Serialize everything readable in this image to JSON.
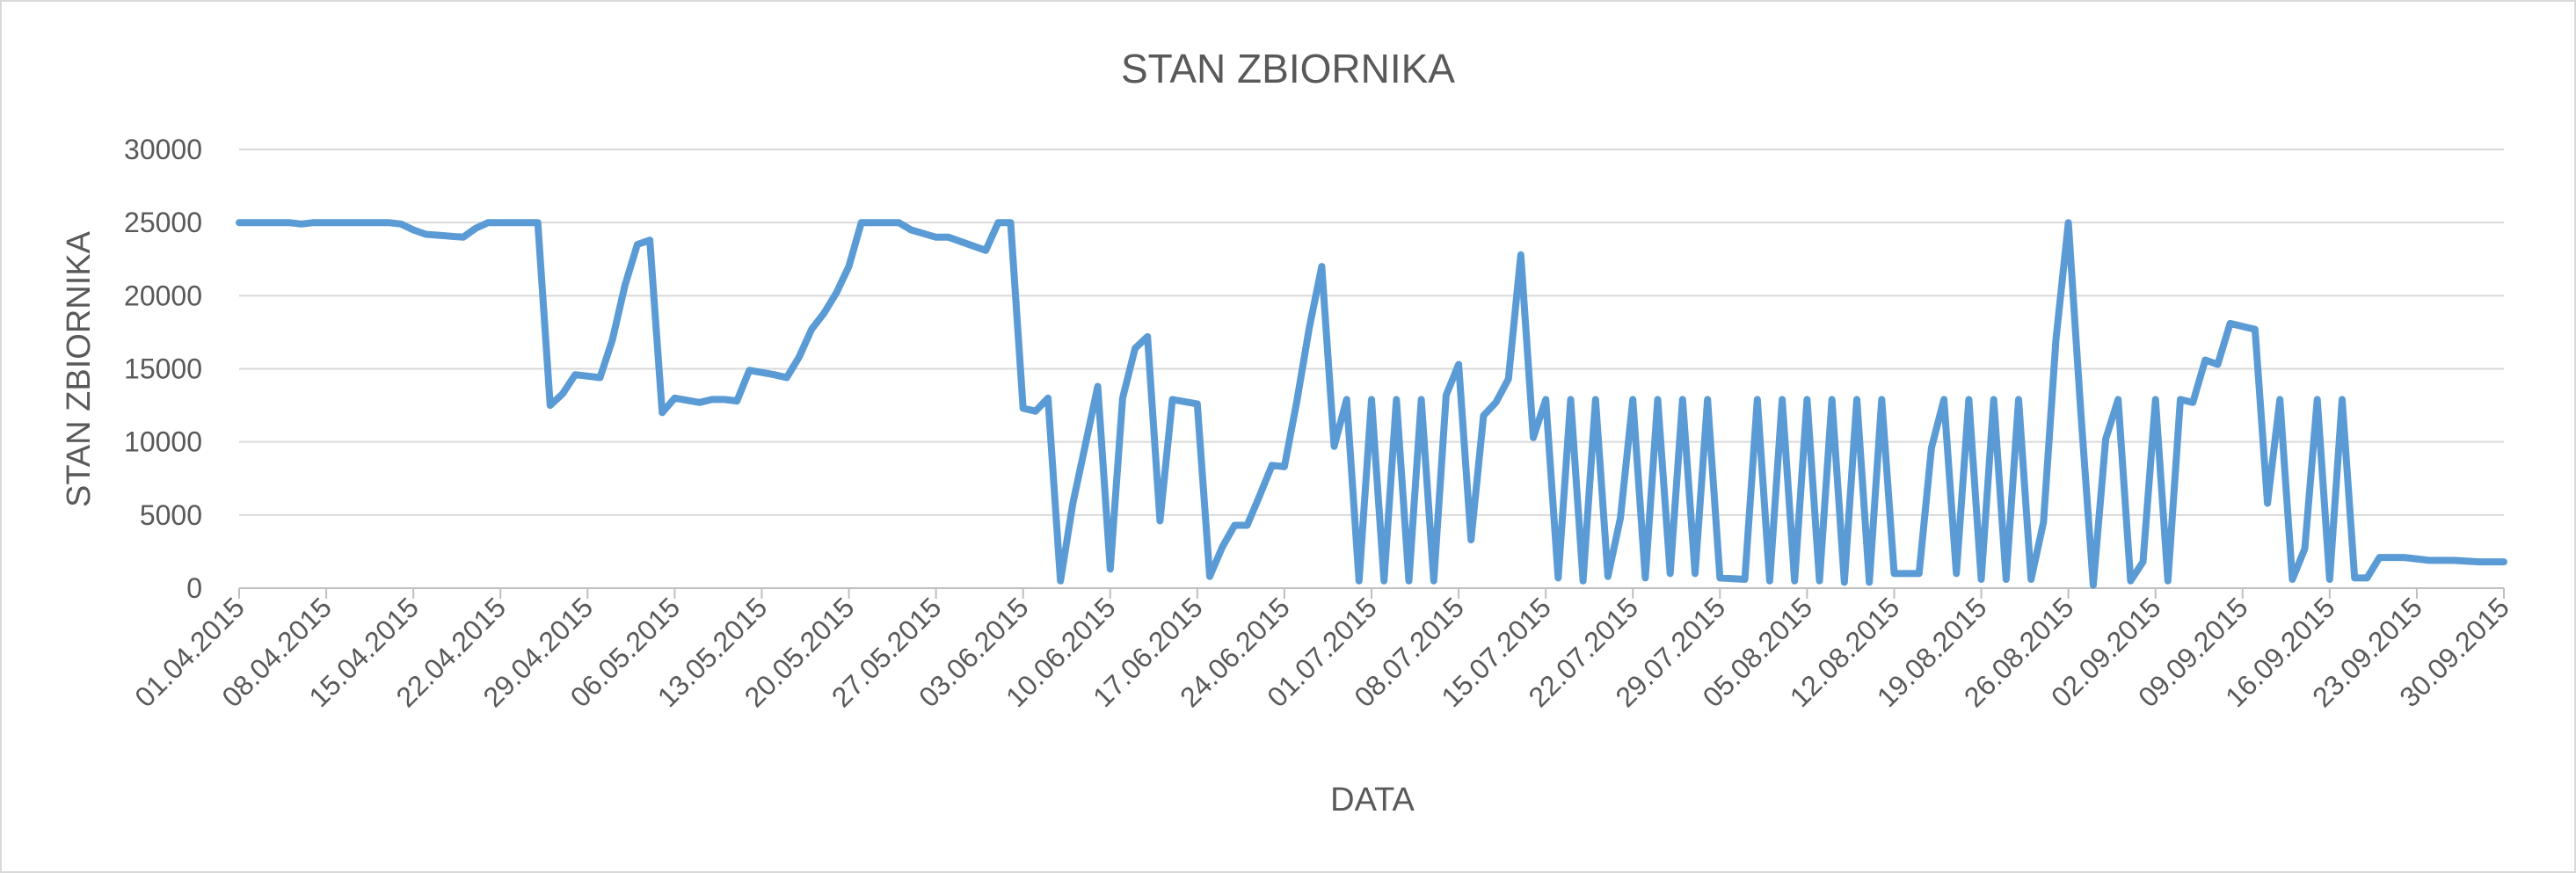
{
  "chart_data": {
    "type": "line",
    "title": "STAN ZBIORNIKA",
    "xlabel": "DATA",
    "ylabel": "STAN ZBIORNIKA",
    "ylim": [
      0,
      30000
    ],
    "yticks": [
      0,
      5000,
      10000,
      15000,
      20000,
      25000,
      30000
    ],
    "grid": true,
    "x_tick_labels": [
      "01.04.2015",
      "08.04.2015",
      "15.04.2015",
      "22.04.2015",
      "29.04.2015",
      "06.05.2015",
      "13.05.2015",
      "20.05.2015",
      "27.05.2015",
      "03.06.2015",
      "10.06.2015",
      "17.06.2015",
      "24.06.2015",
      "01.07.2015",
      "08.07.2015",
      "15.07.2015",
      "22.07.2015",
      "29.07.2015",
      "05.08.2015",
      "12.08.2015",
      "19.08.2015",
      "26.08.2015",
      "02.09.2015",
      "09.09.2015",
      "16.09.2015",
      "23.09.2015",
      "30.09.2015"
    ],
    "series_color": "#5b9bd5",
    "series": [
      {
        "points": [
          [
            "01.04.2015",
            25000
          ],
          [
            "05.04.2015",
            25000
          ],
          [
            "06.04.2015",
            24900
          ],
          [
            "07.04.2015",
            25000
          ],
          [
            "13.04.2015",
            25000
          ],
          [
            "14.04.2015",
            24900
          ],
          [
            "15.04.2015",
            24500
          ],
          [
            "16.04.2015",
            24200
          ],
          [
            "19.04.2015",
            24000
          ],
          [
            "20.04.2015",
            24600
          ],
          [
            "21.04.2015",
            25000
          ],
          [
            "25.04.2015",
            25000
          ],
          [
            "26.04.2015",
            12500
          ],
          [
            "27.04.2015",
            13300
          ],
          [
            "28.04.2015",
            14600
          ],
          [
            "30.04.2015",
            14400
          ],
          [
            "01.05.2015",
            17000
          ],
          [
            "02.05.2015",
            20700
          ],
          [
            "03.05.2015",
            23500
          ],
          [
            "04.05.2015",
            23800
          ],
          [
            "05.05.2015",
            12000
          ],
          [
            "06.05.2015",
            13000
          ],
          [
            "08.05.2015",
            12700
          ],
          [
            "09.05.2015",
            12900
          ],
          [
            "10.05.2015",
            12900
          ],
          [
            "11.05.2015",
            12800
          ],
          [
            "12.05.2015",
            14900
          ],
          [
            "14.05.2015",
            14600
          ],
          [
            "15.05.2015",
            14400
          ],
          [
            "16.05.2015",
            15800
          ],
          [
            "17.05.2015",
            17700
          ],
          [
            "18.05.2015",
            18800
          ],
          [
            "19.05.2015",
            20200
          ],
          [
            "20.05.2015",
            22000
          ],
          [
            "21.05.2015",
            25000
          ],
          [
            "24.05.2015",
            25000
          ],
          [
            "25.05.2015",
            24500
          ],
          [
            "27.05.2015",
            24000
          ],
          [
            "28.05.2015",
            24000
          ],
          [
            "31.05.2015",
            23100
          ],
          [
            "01.06.2015",
            25000
          ],
          [
            "02.06.2015",
            25000
          ],
          [
            "03.06.2015",
            12300
          ],
          [
            "04.06.2015",
            12100
          ],
          [
            "05.06.2015",
            13000
          ],
          [
            "06.06.2015",
            500
          ],
          [
            "07.06.2015",
            5800
          ],
          [
            "08.06.2015",
            9800
          ],
          [
            "09.06.2015",
            13800
          ],
          [
            "10.06.2015",
            1300
          ],
          [
            "11.06.2015",
            13000
          ],
          [
            "12.06.2015",
            16400
          ],
          [
            "13.06.2015",
            17200
          ],
          [
            "14.06.2015",
            4600
          ],
          [
            "15.06.2015",
            12900
          ],
          [
            "17.06.2015",
            12600
          ],
          [
            "18.06.2015",
            800
          ],
          [
            "19.06.2015",
            2800
          ],
          [
            "20.06.2015",
            4300
          ],
          [
            "21.06.2015",
            4300
          ],
          [
            "22.06.2015",
            6300
          ],
          [
            "23.06.2015",
            8400
          ],
          [
            "24.06.2015",
            8300
          ],
          [
            "25.06.2015",
            12800
          ],
          [
            "26.06.2015",
            17800
          ],
          [
            "27.06.2015",
            22000
          ],
          [
            "28.06.2015",
            9700
          ],
          [
            "29.06.2015",
            12900
          ],
          [
            "30.06.2015",
            500
          ],
          [
            "01.07.2015",
            12900
          ],
          [
            "02.07.2015",
            500
          ],
          [
            "03.07.2015",
            12900
          ],
          [
            "04.07.2015",
            500
          ],
          [
            "05.07.2015",
            12900
          ],
          [
            "06.07.2015",
            500
          ],
          [
            "07.07.2015",
            13200
          ],
          [
            "08.07.2015",
            15300
          ],
          [
            "09.07.2015",
            3300
          ],
          [
            "10.07.2015",
            11800
          ],
          [
            "11.07.2015",
            12700
          ],
          [
            "12.07.2015",
            14300
          ],
          [
            "13.07.2015",
            22800
          ],
          [
            "14.07.2015",
            10300
          ],
          [
            "15.07.2015",
            12900
          ],
          [
            "16.07.2015",
            700
          ],
          [
            "17.07.2015",
            12900
          ],
          [
            "18.07.2015",
            500
          ],
          [
            "19.07.2015",
            12900
          ],
          [
            "20.07.2015",
            800
          ],
          [
            "21.07.2015",
            4800
          ],
          [
            "22.07.2015",
            12900
          ],
          [
            "23.07.2015",
            700
          ],
          [
            "24.07.2015",
            12900
          ],
          [
            "25.07.2015",
            1000
          ],
          [
            "26.07.2015",
            12900
          ],
          [
            "27.07.2015",
            1000
          ],
          [
            "28.07.2015",
            12900
          ],
          [
            "29.07.2015",
            700
          ],
          [
            "31.07.2015",
            600
          ],
          [
            "01.08.2015",
            12900
          ],
          [
            "02.08.2015",
            500
          ],
          [
            "03.08.2015",
            12900
          ],
          [
            "04.08.2015",
            500
          ],
          [
            "05.08.2015",
            12900
          ],
          [
            "06.08.2015",
            500
          ],
          [
            "07.08.2015",
            12900
          ],
          [
            "08.08.2015",
            400
          ],
          [
            "09.08.2015",
            12900
          ],
          [
            "10.08.2015",
            400
          ],
          [
            "11.08.2015",
            12900
          ],
          [
            "12.08.2015",
            1000
          ],
          [
            "14.08.2015",
            1000
          ],
          [
            "15.08.2015",
            9600
          ],
          [
            "16.08.2015",
            12900
          ],
          [
            "17.08.2015",
            1000
          ],
          [
            "18.08.2015",
            12900
          ],
          [
            "19.08.2015",
            600
          ],
          [
            "20.08.2015",
            12900
          ],
          [
            "21.08.2015",
            600
          ],
          [
            "22.08.2015",
            12900
          ],
          [
            "23.08.2015",
            600
          ],
          [
            "24.08.2015",
            4500
          ],
          [
            "25.08.2015",
            17000
          ],
          [
            "26.08.2015",
            25000
          ],
          [
            "27.08.2015",
            12000
          ],
          [
            "28.08.2015",
            200
          ],
          [
            "29.08.2015",
            10200
          ],
          [
            "30.08.2015",
            12900
          ],
          [
            "31.08.2015",
            500
          ],
          [
            "01.09.2015",
            1800
          ],
          [
            "02.09.2015",
            12900
          ],
          [
            "03.09.2015",
            500
          ],
          [
            "04.09.2015",
            12900
          ],
          [
            "05.09.2015",
            12700
          ],
          [
            "06.09.2015",
            15600
          ],
          [
            "07.09.2015",
            15300
          ],
          [
            "08.09.2015",
            18100
          ],
          [
            "10.09.2015",
            17700
          ],
          [
            "11.09.2015",
            5800
          ],
          [
            "12.09.2015",
            12900
          ],
          [
            "13.09.2015",
            600
          ],
          [
            "14.09.2015",
            2700
          ],
          [
            "15.09.2015",
            12900
          ],
          [
            "16.09.2015",
            600
          ],
          [
            "17.09.2015",
            12900
          ],
          [
            "18.09.2015",
            700
          ],
          [
            "19.09.2015",
            700
          ],
          [
            "20.09.2015",
            2100
          ],
          [
            "22.09.2015",
            2100
          ],
          [
            "24.09.2015",
            1900
          ],
          [
            "26.09.2015",
            1900
          ],
          [
            "28.09.2015",
            1800
          ],
          [
            "30.09.2015",
            1800
          ]
        ]
      }
    ]
  }
}
